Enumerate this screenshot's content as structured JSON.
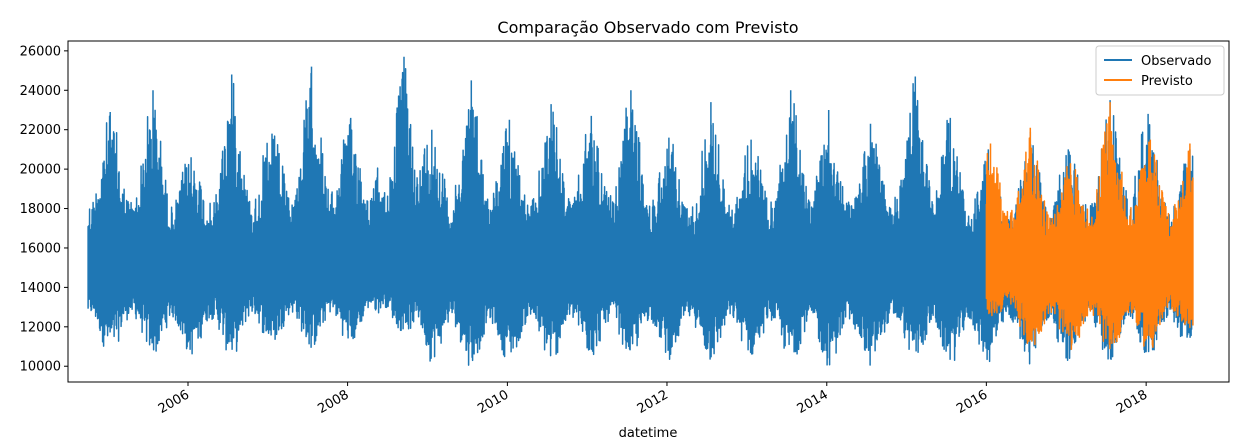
{
  "chart_data": {
    "type": "line",
    "title": "Comparação Observado com Previsto",
    "xlabel": "datetime",
    "ylabel": "",
    "xlim": [
      "2004-07-01",
      "2019-01-15"
    ],
    "ylim": [
      9200,
      26500
    ],
    "x_ticks": [
      "2006",
      "2008",
      "2010",
      "2012",
      "2014",
      "2016",
      "2018"
    ],
    "y_ticks": [
      10000,
      12000,
      14000,
      16000,
      18000,
      20000,
      22000,
      24000,
      26000
    ],
    "y_tick_labels": [
      "10000",
      "12000",
      "14000",
      "16000",
      "18000",
      "20000",
      "22000",
      "24000",
      "26000"
    ],
    "legend_position": "top-right",
    "grid": false,
    "series": [
      {
        "name": "Observado",
        "color": "#1f77b4",
        "x_start": "2004-10-01",
        "x_end": "2018-08-03",
        "baseline": 14800,
        "peaks": [
          {
            "x": "2005-01-10",
            "high": 22900,
            "low": 10500
          },
          {
            "x": "2005-07-25",
            "high": 24000,
            "low": 10400
          },
          {
            "x": "2006-01-15",
            "high": 20600,
            "low": 10400
          },
          {
            "x": "2006-07-20",
            "high": 24800,
            "low": 10300
          },
          {
            "x": "2007-01-20",
            "high": 21800,
            "low": 11000
          },
          {
            "x": "2007-07-20",
            "high": 25200,
            "low": 10700
          },
          {
            "x": "2008-01-15",
            "high": 22600,
            "low": 11000
          },
          {
            "x": "2008-09-15",
            "high": 25700,
            "low": 11800
          },
          {
            "x": "2009-01-20",
            "high": 22000,
            "low": 10100
          },
          {
            "x": "2009-07-20",
            "high": 24500,
            "low": 9900
          },
          {
            "x": "2010-01-10",
            "high": 22500,
            "low": 10200
          },
          {
            "x": "2010-07-20",
            "high": 23300,
            "low": 10000
          },
          {
            "x": "2011-01-20",
            "high": 22700,
            "low": 10300
          },
          {
            "x": "2011-07-20",
            "high": 24000,
            "low": 10300
          },
          {
            "x": "2012-01-10",
            "high": 21600,
            "low": 10300
          },
          {
            "x": "2012-07-20",
            "high": 23400,
            "low": 10000
          },
          {
            "x": "2013-01-20",
            "high": 21500,
            "low": 10300
          },
          {
            "x": "2013-07-20",
            "high": 24000,
            "low": 10100
          },
          {
            "x": "2014-01-10",
            "high": 23000,
            "low": 9900
          },
          {
            "x": "2014-07-20",
            "high": 22300,
            "low": 9800
          },
          {
            "x": "2015-02-10",
            "high": 24700,
            "low": 10200
          },
          {
            "x": "2015-07-20",
            "high": 22600,
            "low": 10000
          },
          {
            "x": "2016-01-10",
            "high": 21000,
            "low": 10000
          },
          {
            "x": "2016-07-20",
            "high": 21900,
            "low": 10100
          },
          {
            "x": "2017-01-10",
            "high": 21000,
            "low": 10100
          },
          {
            "x": "2017-07-20",
            "high": 23500,
            "low": 10100
          },
          {
            "x": "2018-01-10",
            "high": 22800,
            "low": 10300
          },
          {
            "x": "2018-07-20",
            "high": 21000,
            "low": 10600
          }
        ]
      },
      {
        "name": "Previsto",
        "color": "#ff7f0e",
        "x_start": "2016-01-01",
        "x_end": "2018-08-03",
        "baseline": 14800,
        "peaks": [
          {
            "x": "2016-01-20",
            "high": 21300,
            "low": 12500
          },
          {
            "x": "2016-07-20",
            "high": 22100,
            "low": 10600
          },
          {
            "x": "2017-01-20",
            "high": 20300,
            "low": 10700
          },
          {
            "x": "2017-07-20",
            "high": 23400,
            "low": 10600
          },
          {
            "x": "2018-01-20",
            "high": 21500,
            "low": 10500
          },
          {
            "x": "2018-07-20",
            "high": 21300,
            "low": 11800
          }
        ]
      }
    ]
  }
}
